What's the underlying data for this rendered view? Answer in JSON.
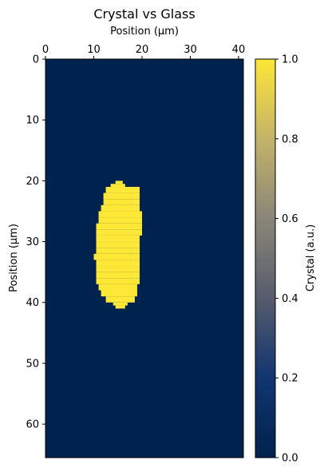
{
  "chart_data": {
    "type": "heatmap",
    "title": "Crystal vs Glass",
    "xlabel": "Position (µm)",
    "ylabel": "Position (µm)",
    "colorbar_label": "Crystal (a.u.)",
    "colormap": "cividis",
    "colormap_low": "#00224e",
    "colormap_high": "#fde737",
    "xlim": [
      0,
      41
    ],
    "ylim": [
      65.5,
      0
    ],
    "x_axis_position": "top",
    "xticks": [
      0,
      10,
      20,
      30,
      40
    ],
    "yticks": [
      0,
      10,
      20,
      30,
      40,
      50,
      60
    ],
    "colorbar_range": [
      0,
      1
    ],
    "colorbar_ticks": [
      "0.0",
      "0.2",
      "0.4",
      "0.6",
      "0.8",
      "1.0"
    ],
    "background_value": 0,
    "crystal_value": 1,
    "crystal_region_rows": [
      {
        "y": 20,
        "x0": 14.5,
        "x1": 16
      },
      {
        "y": 20.5,
        "x0": 13.5,
        "x1": 16.5
      },
      {
        "y": 21,
        "x0": 12.5,
        "x1": 19.5
      },
      {
        "y": 22,
        "x0": 12,
        "x1": 19.5
      },
      {
        "y": 23,
        "x0": 12,
        "x1": 19.5
      },
      {
        "y": 24,
        "x0": 11.5,
        "x1": 19.5
      },
      {
        "y": 25,
        "x0": 11,
        "x1": 20
      },
      {
        "y": 26,
        "x0": 11,
        "x1": 20
      },
      {
        "y": 27,
        "x0": 10.5,
        "x1": 20
      },
      {
        "y": 28,
        "x0": 10.5,
        "x1": 20
      },
      {
        "y": 29,
        "x0": 10.5,
        "x1": 19.5
      },
      {
        "y": 30,
        "x0": 10.5,
        "x1": 19.5
      },
      {
        "y": 31,
        "x0": 10.5,
        "x1": 19.5
      },
      {
        "y": 32,
        "x0": 10,
        "x1": 19.5
      },
      {
        "y": 33,
        "x0": 10.5,
        "x1": 19.5
      },
      {
        "y": 34,
        "x0": 10.5,
        "x1": 19.5
      },
      {
        "y": 35,
        "x0": 10.5,
        "x1": 19.5
      },
      {
        "y": 36,
        "x0": 10.5,
        "x1": 19.5
      },
      {
        "y": 37,
        "x0": 11,
        "x1": 19
      },
      {
        "y": 38,
        "x0": 11.5,
        "x1": 19
      },
      {
        "y": 39,
        "x0": 12.5,
        "x1": 18.5
      },
      {
        "y": 40,
        "x0": 14,
        "x1": 17
      },
      {
        "y": 40.5,
        "x0": 14.5,
        "x1": 16.5
      }
    ]
  }
}
